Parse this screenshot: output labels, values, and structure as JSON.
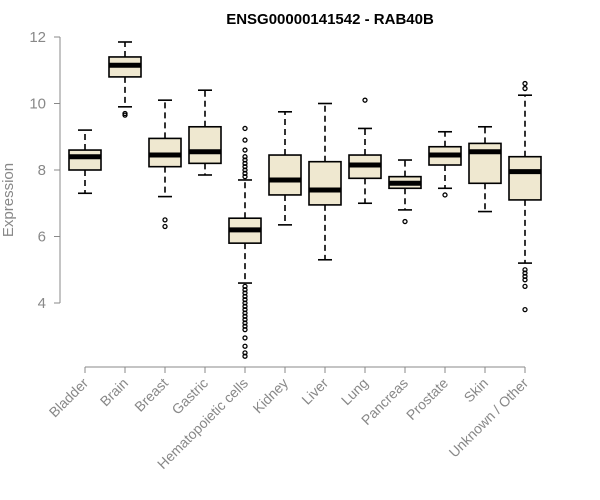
{
  "chart_data": {
    "type": "boxplot",
    "title": "ENSG00000141542 - RAB40B",
    "xlabel": "",
    "ylabel": "Expression",
    "ylim": [
      2.2,
      12.2
    ],
    "yticks": [
      4,
      6,
      8,
      10,
      12
    ],
    "box_color": "#EFE8D0",
    "categories": [
      "Bladder",
      "Brain",
      "Breast",
      "Gastric",
      "Hematopoietic cells",
      "Kidney",
      "Liver",
      "Lung",
      "Pancreas",
      "Prostate",
      "Skin",
      "Unknown / Other"
    ],
    "boxes": [
      {
        "whislo": 7.3,
        "q1": 8.0,
        "med": 8.4,
        "q3": 8.6,
        "whishi": 9.2,
        "fliers": []
      },
      {
        "whislo": 9.9,
        "q1": 10.8,
        "med": 11.15,
        "q3": 11.4,
        "whishi": 11.85,
        "fliers": [
          9.7,
          9.65
        ]
      },
      {
        "whislo": 7.2,
        "q1": 8.1,
        "med": 8.45,
        "q3": 8.95,
        "whishi": 10.1,
        "fliers": [
          6.5,
          6.3
        ]
      },
      {
        "whislo": 7.85,
        "q1": 8.2,
        "med": 8.55,
        "q3": 9.3,
        "whishi": 10.4,
        "fliers": []
      },
      {
        "whislo": 4.6,
        "q1": 5.8,
        "med": 6.2,
        "q3": 6.55,
        "whishi": 7.7,
        "fliers": [
          9.25,
          8.9,
          8.6,
          8.4,
          8.3,
          8.2,
          8.1,
          8.0,
          7.9,
          7.8,
          4.5,
          4.4,
          4.3,
          4.2,
          4.1,
          4.0,
          3.9,
          3.8,
          3.7,
          3.6,
          3.5,
          3.4,
          3.3,
          3.2,
          2.95,
          2.7,
          2.5,
          2.4
        ]
      },
      {
        "whislo": 6.35,
        "q1": 7.25,
        "med": 7.7,
        "q3": 8.45,
        "whishi": 9.75,
        "fliers": []
      },
      {
        "whislo": 5.3,
        "q1": 6.95,
        "med": 7.4,
        "q3": 8.25,
        "whishi": 10.0,
        "fliers": []
      },
      {
        "whislo": 7.0,
        "q1": 7.75,
        "med": 8.15,
        "q3": 8.45,
        "whishi": 9.25,
        "fliers": [
          10.1
        ]
      },
      {
        "whislo": 6.8,
        "q1": 7.45,
        "med": 7.6,
        "q3": 7.8,
        "whishi": 8.3,
        "fliers": [
          6.45
        ]
      },
      {
        "whislo": 7.45,
        "q1": 8.15,
        "med": 8.45,
        "q3": 8.7,
        "whishi": 9.15,
        "fliers": [
          7.25
        ]
      },
      {
        "whislo": 6.75,
        "q1": 7.6,
        "med": 8.55,
        "q3": 8.8,
        "whishi": 9.3,
        "fliers": []
      },
      {
        "whislo": 5.2,
        "q1": 7.1,
        "med": 7.95,
        "q3": 8.4,
        "whishi": 10.25,
        "fliers": [
          10.6,
          10.45,
          5.0,
          4.9,
          4.8,
          4.7,
          4.5,
          3.8
        ]
      }
    ]
  }
}
